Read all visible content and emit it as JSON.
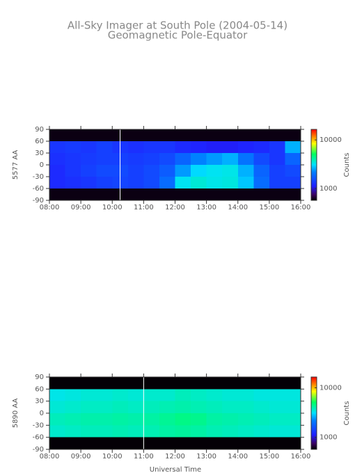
{
  "title": "All-Sky Imager at South Pole (2004-05-14)",
  "subtitle": "Geomagnetic Pole-Equator",
  "xlabel": "Universal Time",
  "chart_data": [
    {
      "type": "heatmap",
      "ylabel": "5577 AA",
      "colorbar_label": "Counts",
      "xlim": [
        8,
        16
      ],
      "ylim": [
        -90,
        90
      ],
      "xticks": [
        {
          "value": 8,
          "label": "08:00"
        },
        {
          "value": 9,
          "label": "09:00"
        },
        {
          "value": 10,
          "label": "10:00"
        },
        {
          "value": 11,
          "label": "11:00"
        },
        {
          "value": 12,
          "label": "12:00"
        },
        {
          "value": 13,
          "label": "13:00"
        },
        {
          "value": 14,
          "label": "14:00"
        },
        {
          "value": 15,
          "label": "15:00"
        },
        {
          "value": 16,
          "label": "16:00"
        }
      ],
      "yticks": [
        90,
        60,
        30,
        0,
        -30,
        -60,
        -90
      ],
      "x_bins": [
        8,
        8.5,
        9,
        9.5,
        10,
        10.5,
        11,
        11.5,
        12,
        12.5,
        13,
        13.5,
        14,
        14.5,
        15,
        15.5,
        16
      ],
      "y_bins": [
        90,
        60,
        30,
        0,
        -30,
        -60,
        -90
      ],
      "z": [
        [
          600,
          600,
          600,
          600,
          600,
          600,
          600,
          600,
          600,
          600,
          600,
          600,
          600,
          600,
          600,
          600
        ],
        [
          1300,
          1350,
          1300,
          1400,
          1300,
          1250,
          1300,
          1300,
          1200,
          1150,
          1100,
          1100,
          1150,
          1200,
          1300,
          2600
        ],
        [
          1250,
          1300,
          1350,
          1400,
          1400,
          1350,
          1400,
          1500,
          1800,
          2200,
          2400,
          2600,
          2000,
          1500,
          1300,
          1800
        ],
        [
          1200,
          1300,
          1400,
          1500,
          1500,
          1400,
          1500,
          1700,
          2400,
          3000,
          3200,
          3300,
          2600,
          1800,
          1400,
          1500
        ],
        [
          1200,
          1250,
          1300,
          1400,
          1450,
          1400,
          1500,
          1900,
          3200,
          3500,
          3300,
          3400,
          2800,
          1900,
          1400,
          1400
        ],
        [
          600,
          600,
          600,
          600,
          600,
          600,
          600,
          600,
          600,
          600,
          600,
          600,
          600,
          600,
          600,
          600
        ]
      ],
      "zlim": [
        570,
        16500
      ],
      "zscale": "log",
      "zticks": [
        1000,
        10000
      ],
      "colorscale": [
        "#000000",
        "#3a0060",
        "#2020ff",
        "#0080ff",
        "#00e0ff",
        "#00ff60",
        "#ffff00",
        "#ff8000",
        "#ff0000"
      ],
      "colorscale_positions": [
        0,
        0.08,
        0.2,
        0.4,
        0.5,
        0.65,
        0.8,
        0.9,
        1
      ],
      "markers": [
        10.25
      ]
    },
    {
      "type": "heatmap",
      "ylabel": "5890 AA",
      "colorbar_label": "Counts",
      "xlim": [
        8,
        16
      ],
      "ylim": [
        -90,
        90
      ],
      "xticks": [
        {
          "value": 8,
          "label": "08:00"
        },
        {
          "value": 9,
          "label": "09:00"
        },
        {
          "value": 10,
          "label": "10:00"
        },
        {
          "value": 11,
          "label": "11:00"
        },
        {
          "value": 12,
          "label": "12:00"
        },
        {
          "value": 13,
          "label": "13:00"
        },
        {
          "value": 14,
          "label": "14:00"
        },
        {
          "value": 15,
          "label": "15:00"
        },
        {
          "value": 16,
          "label": "16:00"
        }
      ],
      "yticks": [
        90,
        60,
        30,
        0,
        -30,
        -60,
        -90
      ],
      "x_bins": [
        8,
        8.5,
        9,
        9.5,
        10,
        10.5,
        11,
        11.5,
        12,
        12.5,
        13,
        13.5,
        14,
        14.5,
        15,
        15.5,
        16
      ],
      "y_bins": [
        90,
        60,
        30,
        0,
        -30,
        -60,
        -90
      ],
      "z": [
        [
          580,
          580,
          580,
          580,
          580,
          580,
          580,
          580,
          580,
          580,
          580,
          580,
          580,
          580,
          580,
          580
        ],
        [
          3300,
          3400,
          3500,
          3500,
          3600,
          3500,
          3600,
          3600,
          3800,
          3700,
          3600,
          3500,
          3500,
          3400,
          3400,
          3400
        ],
        [
          3500,
          3600,
          3700,
          3700,
          3800,
          3700,
          3800,
          3900,
          4000,
          3900,
          3800,
          3700,
          3700,
          3600,
          3500,
          3500
        ],
        [
          3800,
          3900,
          4000,
          4000,
          4100,
          4000,
          4100,
          4300,
          4500,
          4400,
          4100,
          4000,
          3900,
          3800,
          3700,
          3700
        ],
        [
          3600,
          3700,
          3800,
          3800,
          3900,
          3800,
          3900,
          4100,
          4200,
          4100,
          3900,
          3800,
          3700,
          3600,
          3500,
          3500
        ],
        [
          580,
          580,
          580,
          580,
          580,
          580,
          580,
          580,
          580,
          580,
          580,
          580,
          580,
          580,
          580,
          580
        ]
      ],
      "zlim": [
        570,
        16500
      ],
      "zscale": "log",
      "zticks": [
        1000,
        10000
      ],
      "colorscale": [
        "#000000",
        "#3a0060",
        "#2020ff",
        "#0080ff",
        "#00e0ff",
        "#00ff60",
        "#ffff00",
        "#ff8000",
        "#ff0000"
      ],
      "colorscale_positions": [
        0,
        0.08,
        0.2,
        0.4,
        0.5,
        0.65,
        0.8,
        0.9,
        1
      ],
      "markers": [
        11
      ]
    }
  ]
}
